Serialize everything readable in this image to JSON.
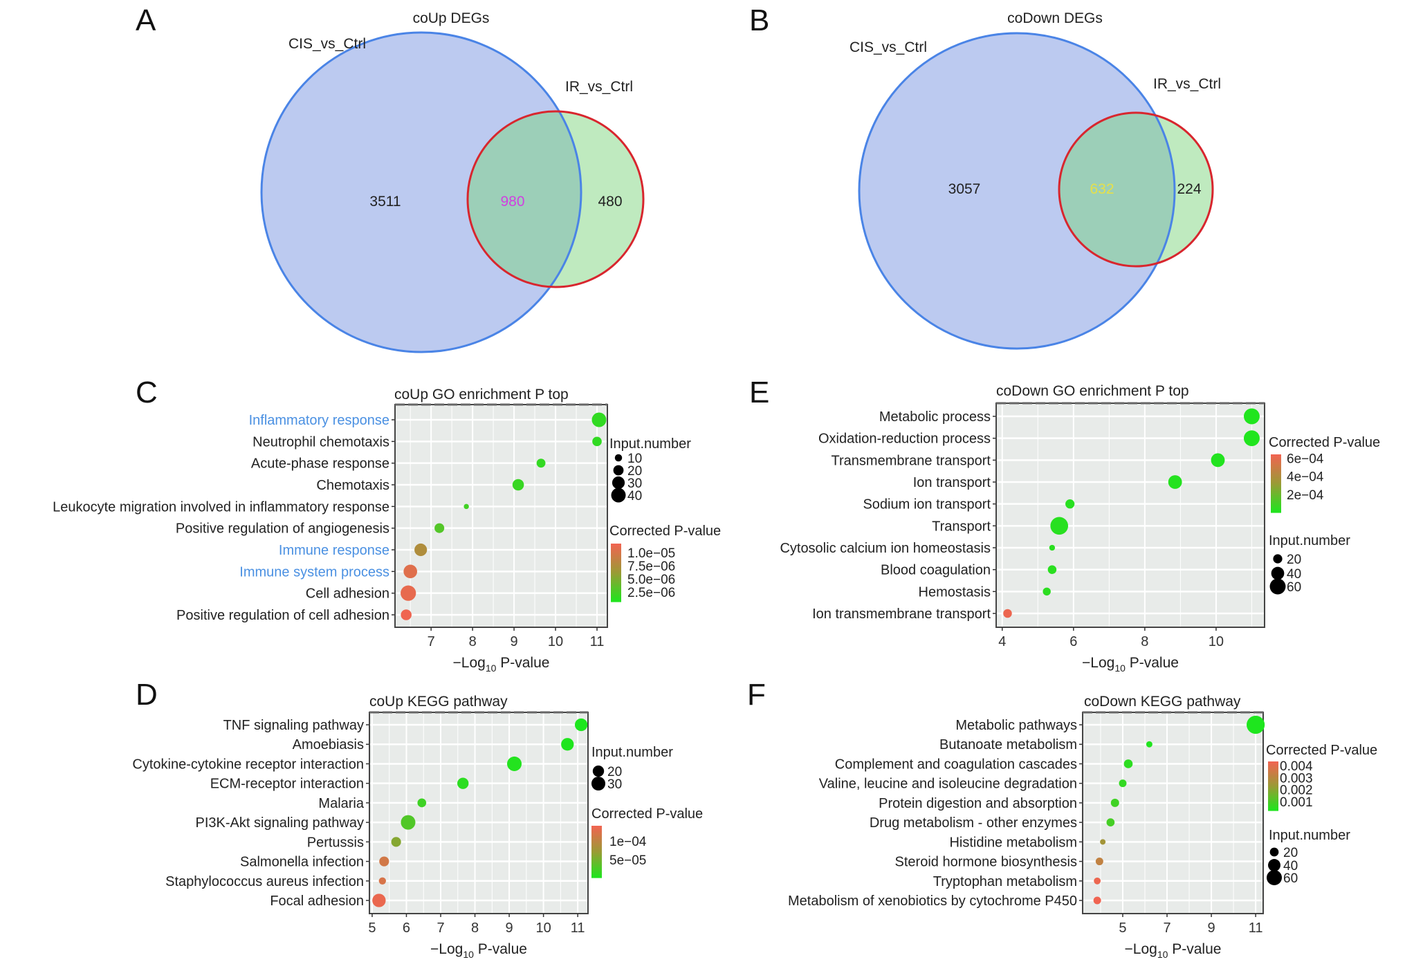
{
  "venn": [
    {
      "panel_label": "A",
      "title": "coUp DEGs",
      "set_left": "CIS_vs_Ctrl",
      "set_right": "IR_vs_Ctrl",
      "left_only": "3511",
      "overlap": "980",
      "right_only": "480",
      "overlap_color": "#d040e0"
    },
    {
      "panel_label": "B",
      "title": "coDown DEGs",
      "set_left": "CIS_vs_Ctrl",
      "set_right": "IR_vs_Ctrl",
      "left_only": "3057",
      "overlap": "632",
      "right_only": "224",
      "overlap_color": "#e6e04a"
    }
  ],
  "colors": {
    "left_fill": "#bccaf0",
    "left_stroke": "#4a84e6",
    "right_fill": "#bfeabf",
    "right_stroke": "#d8262e",
    "overlap_fill": "#9ccfb8",
    "low": "#1ee61e",
    "mid": "#9a9a35",
    "high": "#f26352",
    "highlight_text": "#4a90e2",
    "panel_bg": "#e8ebe9"
  },
  "chart_data": [
    {
      "panel_label": "C",
      "type": "scatter",
      "title": "coUp GO enrichment P top",
      "xlabel_prefix": "−Log",
      "xlabel_sub": "10",
      "xlabel_suffix": " P-value",
      "xlim": [
        6.13,
        11.25
      ],
      "xticks": [
        7,
        8,
        9,
        10,
        11
      ],
      "categories": [
        "Inflammatory response",
        "Neutrophil chemotaxis",
        "Acute-phase response",
        "Chemotaxis",
        "Leukocyte migration involved in inflammatory response",
        "Positive regulation of angiogenesis",
        "Immune response",
        "Immune system process",
        "Cell adhesion",
        "Positive regulation of cell adhesion"
      ],
      "highlighted": [
        true,
        false,
        false,
        false,
        false,
        false,
        true,
        true,
        false,
        false
      ],
      "x": [
        11.05,
        11.0,
        9.65,
        9.1,
        7.85,
        7.2,
        6.75,
        6.5,
        6.45,
        6.4
      ],
      "size": [
        40,
        17,
        15,
        25,
        5,
        18,
        30,
        35,
        45,
        22
      ],
      "pvalue": [
        1.5e-06,
        1.5e-06,
        1.6e-06,
        1.8e-06,
        2.2e-06,
        3e-06,
        7.5e-06,
        1.05e-05,
        1.1e-05,
        1.15e-05
      ],
      "size_legend": {
        "title": "Input.number",
        "values": [
          10,
          20,
          30,
          40
        ]
      },
      "color_legend": {
        "title": "Corrected P-value",
        "range": [
          6.6e-07,
          1.17e-05
        ],
        "ticks": [
          1e-05,
          7.5e-06,
          5e-06,
          2.5e-06
        ],
        "labels": [
          "1.0e−05",
          "7.5e−06",
          "5.0e−06",
          "2.5e−06"
        ]
      }
    },
    {
      "panel_label": "E",
      "type": "scatter",
      "title": "coDown GO enrichment P top",
      "xlabel_prefix": "−Log",
      "xlabel_sub": "10",
      "xlabel_suffix": " P-value",
      "xlim": [
        3.83,
        11.36
      ],
      "xticks": [
        4,
        6,
        8,
        10
      ],
      "categories": [
        "Metabolic process",
        "Oxidation-reduction process",
        "Transmembrane transport",
        "Ion transport",
        "Sodium ion transport",
        "Transport",
        "Cytosolic calcium ion homeostasis",
        "Blood coagulation",
        "Hemostasis",
        "Ion transmembrane transport"
      ],
      "highlighted": [
        false,
        false,
        false,
        false,
        false,
        false,
        false,
        false,
        false,
        false
      ],
      "x": [
        11.0,
        11.0,
        10.05,
        8.85,
        5.9,
        5.6,
        5.4,
        5.4,
        5.25,
        4.15
      ],
      "size": [
        60,
        60,
        45,
        45,
        20,
        75,
        8,
        18,
        15,
        18
      ],
      "pvalue": [
        1e-05,
        1e-05,
        1.5e-05,
        2e-05,
        3e-05,
        3e-05,
        3.5e-05,
        3.5e-05,
        4e-05,
        0.00062
      ],
      "size_legend": {
        "title": "Input.number",
        "values": [
          20,
          40,
          60
        ]
      },
      "color_legend": {
        "title": "Corrected P-value",
        "range": [
          4e-06,
          0.00064
        ],
        "ticks": [
          0.0006,
          0.0004,
          0.0002
        ],
        "labels": [
          "6e−04",
          "4e−04",
          "2e−04"
        ]
      }
    },
    {
      "panel_label": "D",
      "type": "scatter",
      "title": "coUp KEGG pathway",
      "xlabel_prefix": "−Log",
      "xlabel_sub": "10",
      "xlabel_suffix": " P-value",
      "xlim": [
        4.92,
        11.3
      ],
      "xticks": [
        5,
        6,
        7,
        8,
        9,
        10,
        11
      ],
      "categories": [
        "TNF signaling pathway",
        "Amoebiasis",
        "Cytokine-cytokine receptor interaction",
        "ECM-receptor interaction",
        "Malaria",
        "PI3K-Akt signaling pathway",
        "Pertussis",
        "Salmonella infection",
        "Staphylococcus aureus infection",
        "Focal adhesion"
      ],
      "highlighted": [
        false,
        false,
        false,
        false,
        false,
        false,
        false,
        false,
        false,
        false
      ],
      "x": [
        11.1,
        10.7,
        9.15,
        7.65,
        6.45,
        6.05,
        5.7,
        5.35,
        5.3,
        5.2
      ],
      "size": [
        25,
        25,
        33,
        20,
        12,
        33,
        15,
        15,
        8,
        28
      ],
      "pvalue": [
        2e-06,
        3e-06,
        5e-06,
        1e-05,
        2e-05,
        3e-05,
        6e-05,
        0.000115,
        0.00012,
        0.000135
      ],
      "size_legend": {
        "title": "Input.number",
        "values": [
          20,
          30
        ]
      },
      "color_legend": {
        "title": "Corrected P-value",
        "range": [
          2e-06,
          0.000141
        ],
        "ticks": [
          0.0001,
          5e-05
        ],
        "labels": [
          "1e−04",
          "5e−05"
        ]
      }
    },
    {
      "panel_label": "F",
      "type": "scatter",
      "title": "coDown KEGG pathway",
      "xlabel_prefix": "−Log",
      "xlabel_sub": "10",
      "xlabel_suffix": " P-value",
      "xlim": [
        3.19,
        11.34
      ],
      "xticks": [
        5,
        7,
        9,
        11
      ],
      "categories": [
        "Metabolic pathways",
        "Butanoate metabolism",
        "Complement and coagulation cascades",
        "Valine, leucine and isoleucine degradation",
        "Protein digestion and absorption",
        "Drug metabolism - other enzymes",
        "Histidine metabolism",
        "Steroid hormone biosynthesis",
        "Tryptophan metabolism",
        "Metabolism of xenobiotics by cytochrome P450"
      ],
      "highlighted": [
        false,
        false,
        false,
        false,
        false,
        false,
        false,
        false,
        false,
        false
      ],
      "x": [
        11.0,
        6.2,
        5.25,
        5.0,
        4.65,
        4.45,
        4.1,
        3.95,
        3.85,
        3.85
      ],
      "size": [
        85,
        10,
        20,
        15,
        18,
        17,
        8,
        15,
        12,
        15
      ],
      "pvalue": [
        1e-05,
        0.0003,
        0.0005,
        0.0006,
        0.0008,
        0.0009,
        0.0025,
        0.0032,
        0.0042,
        0.0043
      ],
      "size_legend": {
        "title": "Input.number",
        "values": [
          20,
          40,
          60
        ]
      },
      "color_legend": {
        "title": "Corrected P-value",
        "range": [
          0.00025,
          0.00435
        ],
        "ticks": [
          0.004,
          0.003,
          0.002,
          0.001
        ],
        "labels": [
          "0.004",
          "0.003",
          "0.002",
          "0.001"
        ]
      }
    }
  ]
}
